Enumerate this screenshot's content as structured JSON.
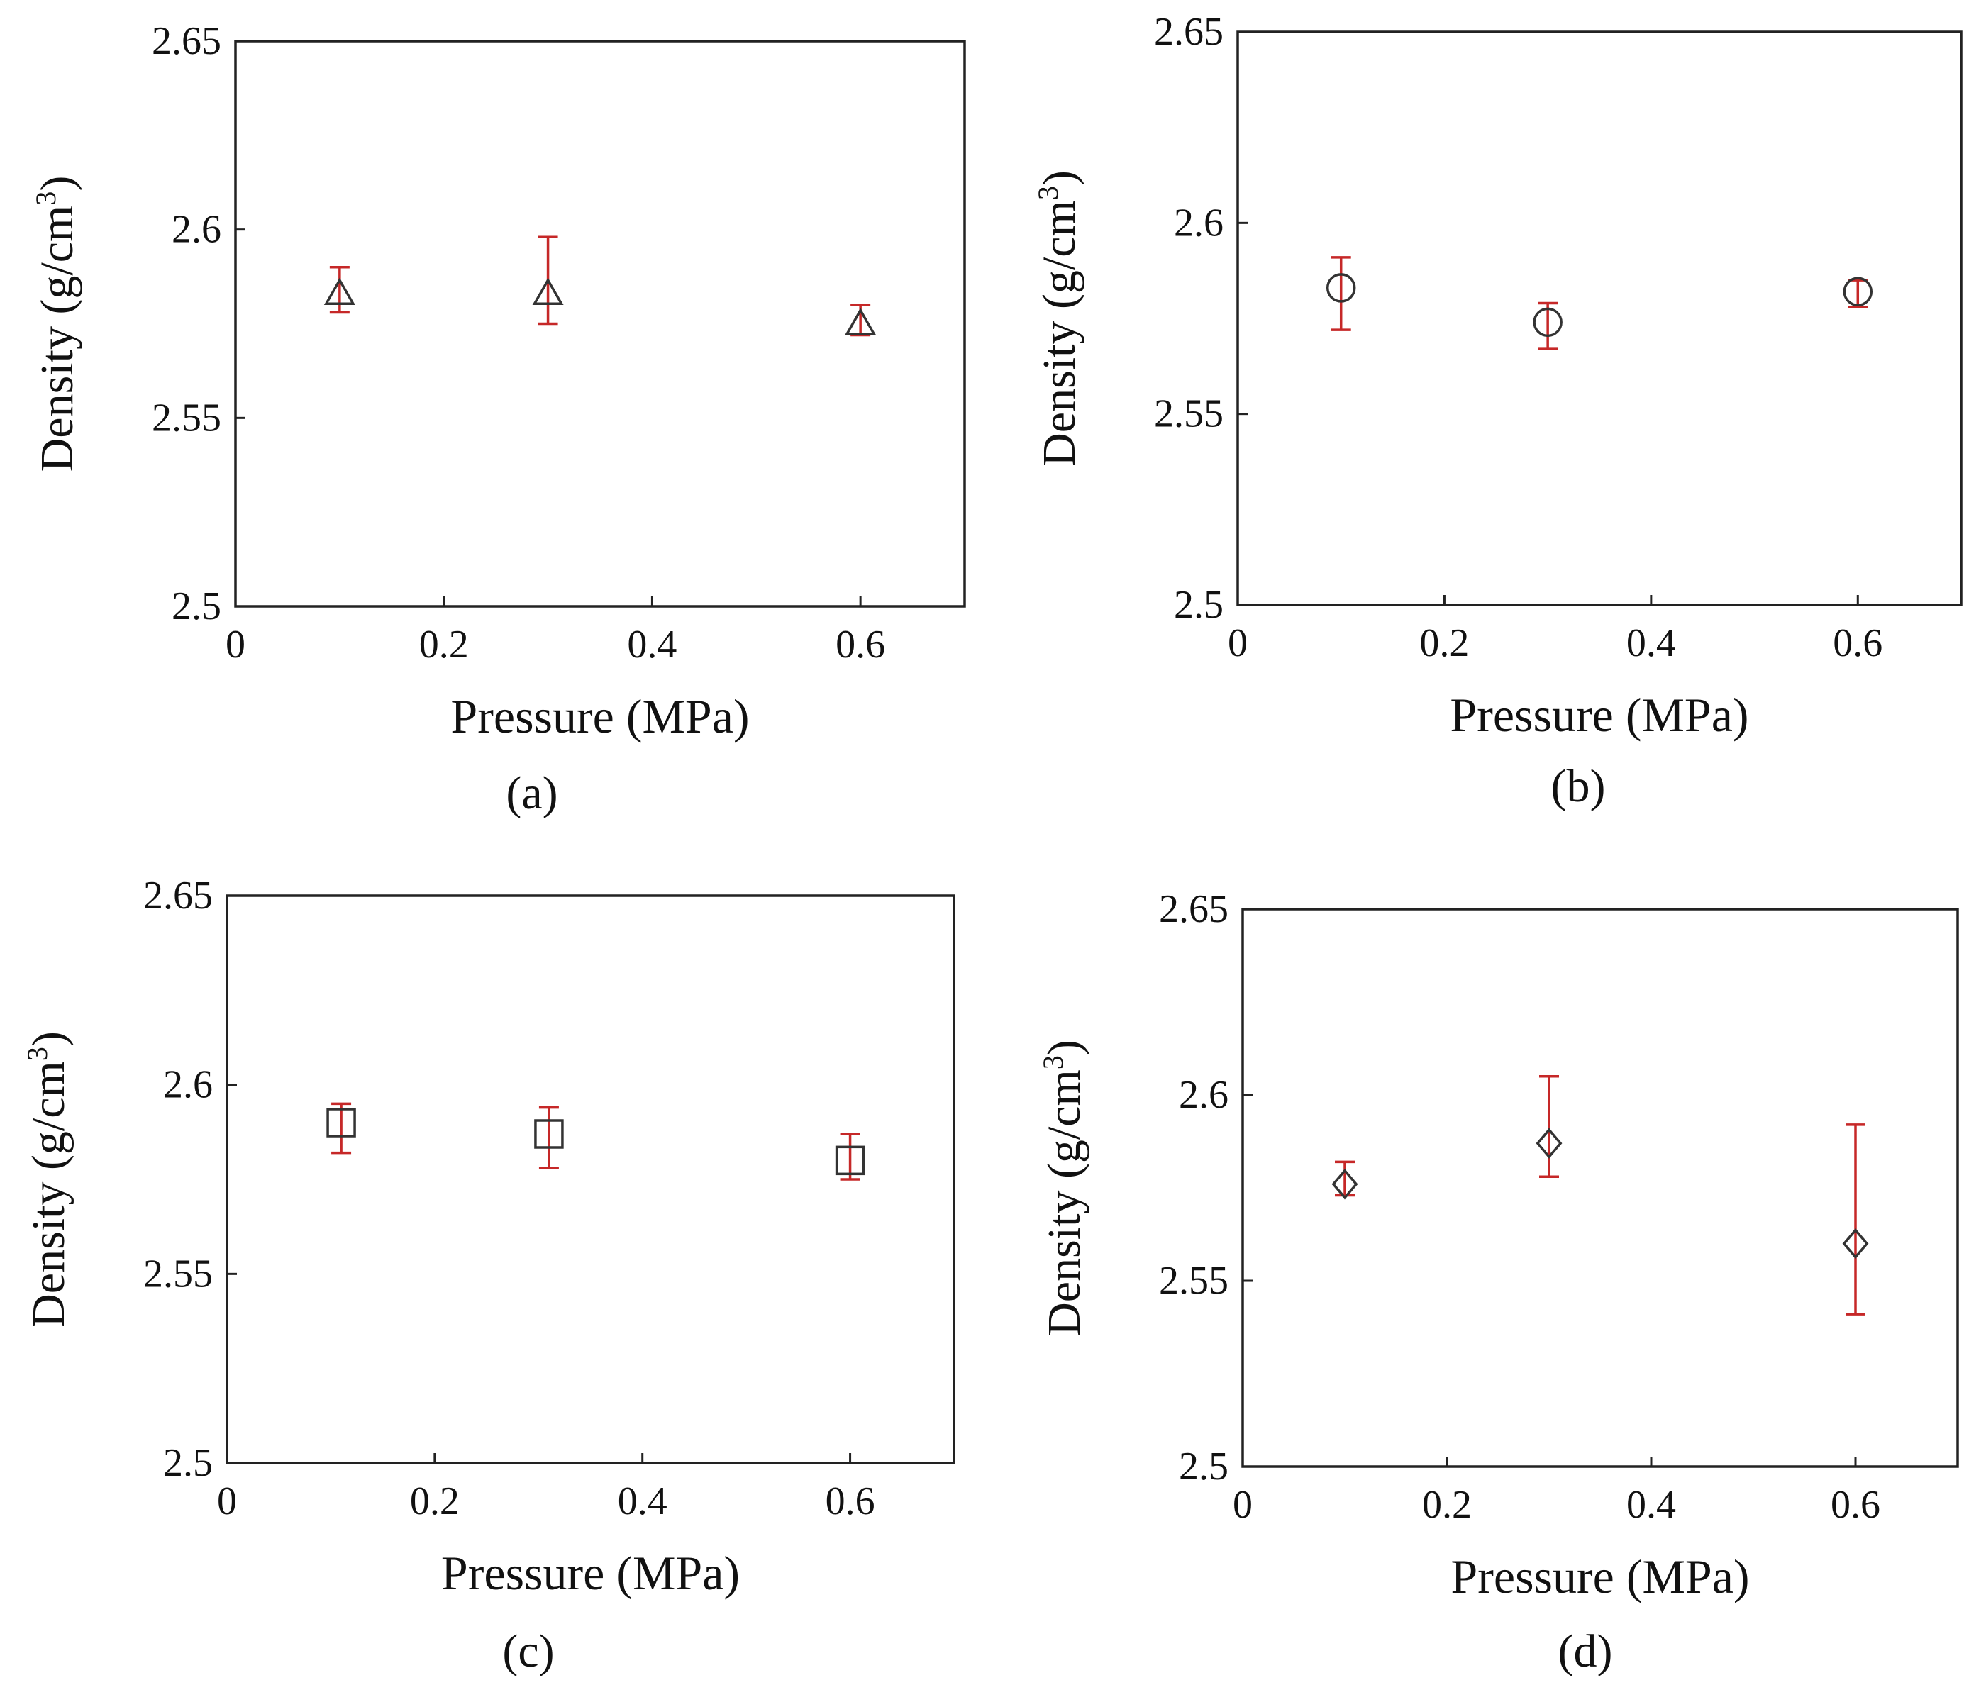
{
  "colors": {
    "error_bar": "#c62828",
    "marker": "#333333",
    "axis": "#222222"
  },
  "chart_data": [
    {
      "panel": "(a)",
      "type": "scatter",
      "marker": "triangle",
      "xlabel": "Pressure (MPa)",
      "ylabel_main": "Density (g/cm",
      "ylabel_sup": "3",
      "ylabel_close": ")",
      "xlim": [
        0,
        0.7
      ],
      "ylim": [
        2.5,
        2.65
      ],
      "xticks": [
        "0",
        "0.2",
        "0.4",
        "0.6"
      ],
      "yticks": [
        "2.5",
        "2.55",
        "2.6",
        "2.65"
      ],
      "points": [
        {
          "x": 0.1,
          "y": 2.583,
          "ylow": 2.578,
          "yhigh": 2.59
        },
        {
          "x": 0.3,
          "y": 2.583,
          "ylow": 2.575,
          "yhigh": 2.598
        },
        {
          "x": 0.6,
          "y": 2.575,
          "ylow": 2.572,
          "yhigh": 2.58
        }
      ]
    },
    {
      "panel": "(b)",
      "type": "scatter",
      "marker": "circle",
      "xlabel": "Pressure (MPa)",
      "ylabel_main": "Density (g/cm",
      "ylabel_sup": "3",
      "ylabel_close": ")",
      "xlim": [
        0,
        0.7
      ],
      "ylim": [
        2.5,
        2.65
      ],
      "xticks": [
        "0",
        "0.2",
        "0.4",
        "0.6"
      ],
      "yticks": [
        "2.5",
        "2.55",
        "2.6",
        "2.65"
      ],
      "points": [
        {
          "x": 0.1,
          "y": 2.583,
          "ylow": 2.572,
          "yhigh": 2.591
        },
        {
          "x": 0.3,
          "y": 2.574,
          "ylow": 2.567,
          "yhigh": 2.579
        },
        {
          "x": 0.6,
          "y": 2.582,
          "ylow": 2.578,
          "yhigh": 2.585
        }
      ]
    },
    {
      "panel": "(c)",
      "type": "scatter",
      "marker": "square",
      "xlabel": "Pressure (MPa)",
      "ylabel_main": "Density (g/cm",
      "ylabel_sup": "3",
      "ylabel_close": ")",
      "xlim": [
        0,
        0.7
      ],
      "ylim": [
        2.5,
        2.65
      ],
      "xticks": [
        "0",
        "0.2",
        "0.4",
        "0.6"
      ],
      "yticks": [
        "2.5",
        "2.55",
        "2.6",
        "2.65"
      ],
      "points": [
        {
          "x": 0.11,
          "y": 2.59,
          "ylow": 2.582,
          "yhigh": 2.595
        },
        {
          "x": 0.31,
          "y": 2.587,
          "ylow": 2.578,
          "yhigh": 2.594
        },
        {
          "x": 0.6,
          "y": 2.58,
          "ylow": 2.575,
          "yhigh": 2.587
        }
      ]
    },
    {
      "panel": "(d)",
      "type": "scatter",
      "marker": "diamond",
      "xlabel": "Pressure (MPa)",
      "ylabel_main": "Density (g/cm",
      "ylabel_sup": "3",
      "ylabel_close": ")",
      "xlim": [
        0,
        0.7
      ],
      "ylim": [
        2.5,
        2.65
      ],
      "xticks": [
        "0",
        "0.2",
        "0.4",
        "0.6"
      ],
      "yticks": [
        "2.5",
        "2.55",
        "2.6",
        "2.65"
      ],
      "points": [
        {
          "x": 0.1,
          "y": 2.576,
          "ylow": 2.573,
          "yhigh": 2.582
        },
        {
          "x": 0.3,
          "y": 2.587,
          "ylow": 2.578,
          "yhigh": 2.605
        },
        {
          "x": 0.6,
          "y": 2.56,
          "ylow": 2.541,
          "yhigh": 2.592
        }
      ]
    }
  ]
}
